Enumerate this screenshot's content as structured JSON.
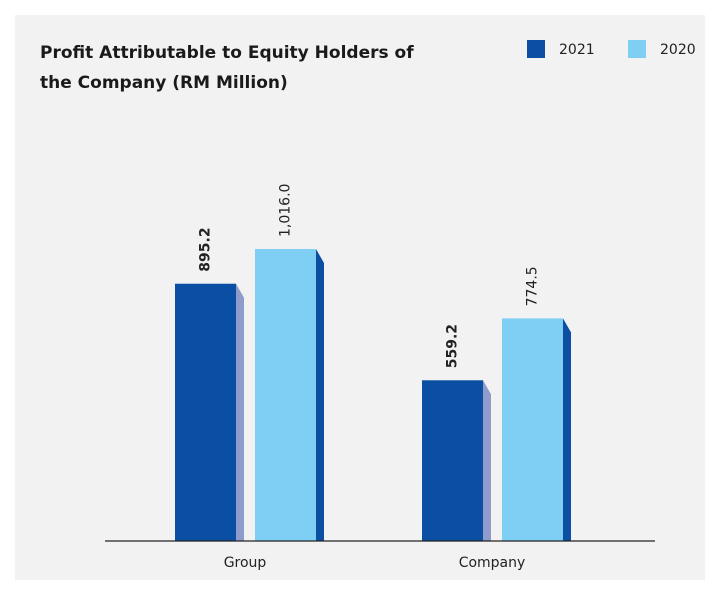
{
  "chart_data": {
    "type": "bar",
    "title": "Profit Attributable to Equity Holders of the Company (RM Million)",
    "categories": [
      "Group",
      "Company"
    ],
    "series": [
      {
        "name": "2021",
        "color": "#0a4fa3",
        "side_color": "#8e9bcb",
        "values": [
          895.2,
          559.2
        ],
        "value_labels": [
          "895.2",
          "559.2"
        ],
        "label_bold": true
      },
      {
        "name": "2020",
        "color": "#7ecff3",
        "side_color": "#0a4fa3",
        "values": [
          1016.0,
          774.5
        ],
        "value_labels": [
          "1,016.0",
          "774.5"
        ],
        "label_bold": false
      }
    ],
    "legend": "top-right"
  }
}
